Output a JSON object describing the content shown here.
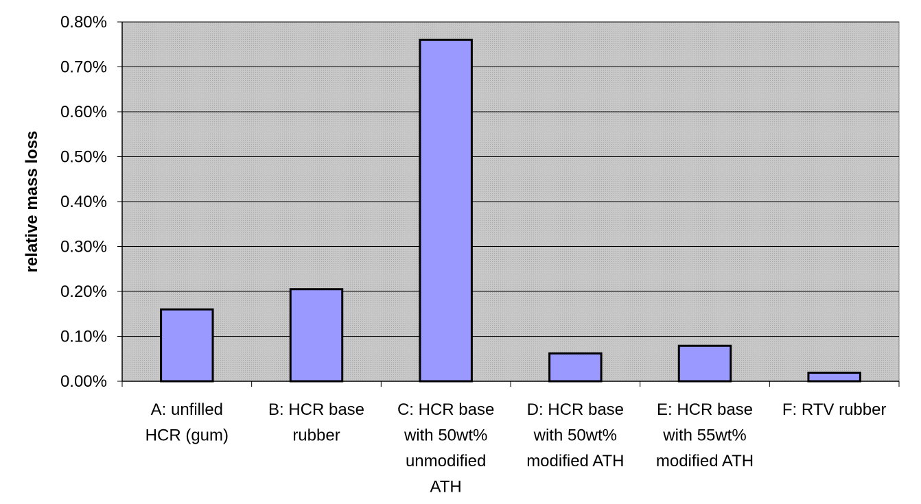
{
  "chart_data": {
    "type": "bar",
    "title": "",
    "xlabel": "",
    "ylabel": "relative mass loss",
    "ylim": [
      0,
      0.8
    ],
    "ytick_values": [
      0,
      0.1,
      0.2,
      0.3,
      0.4,
      0.5,
      0.6,
      0.7,
      0.8
    ],
    "ytick_labels": [
      "0.00%",
      "0.10%",
      "0.20%",
      "0.30%",
      "0.40%",
      "0.50%",
      "0.60%",
      "0.70%",
      "0.80%"
    ],
    "grid": true,
    "legend": "none",
    "categories": [
      [
        "A: unfilled",
        "HCR (gum)"
      ],
      [
        "B: HCR base",
        "rubber"
      ],
      [
        "C: HCR base",
        "with 50wt%",
        "unmodified",
        "ATH"
      ],
      [
        "D: HCR base",
        "with 50wt%",
        "modified ATH"
      ],
      [
        "E: HCR base",
        "with 55wt%",
        "modified ATH"
      ],
      [
        "F: RTV rubber"
      ]
    ],
    "values": [
      0.16,
      0.205,
      0.76,
      0.062,
      0.079,
      0.019
    ],
    "unit": "%",
    "colors": {
      "bar_fill": "#9999ff",
      "bar_stroke": "#000000",
      "plot_bg": "#c0c0c0",
      "grid": "#000000"
    }
  }
}
